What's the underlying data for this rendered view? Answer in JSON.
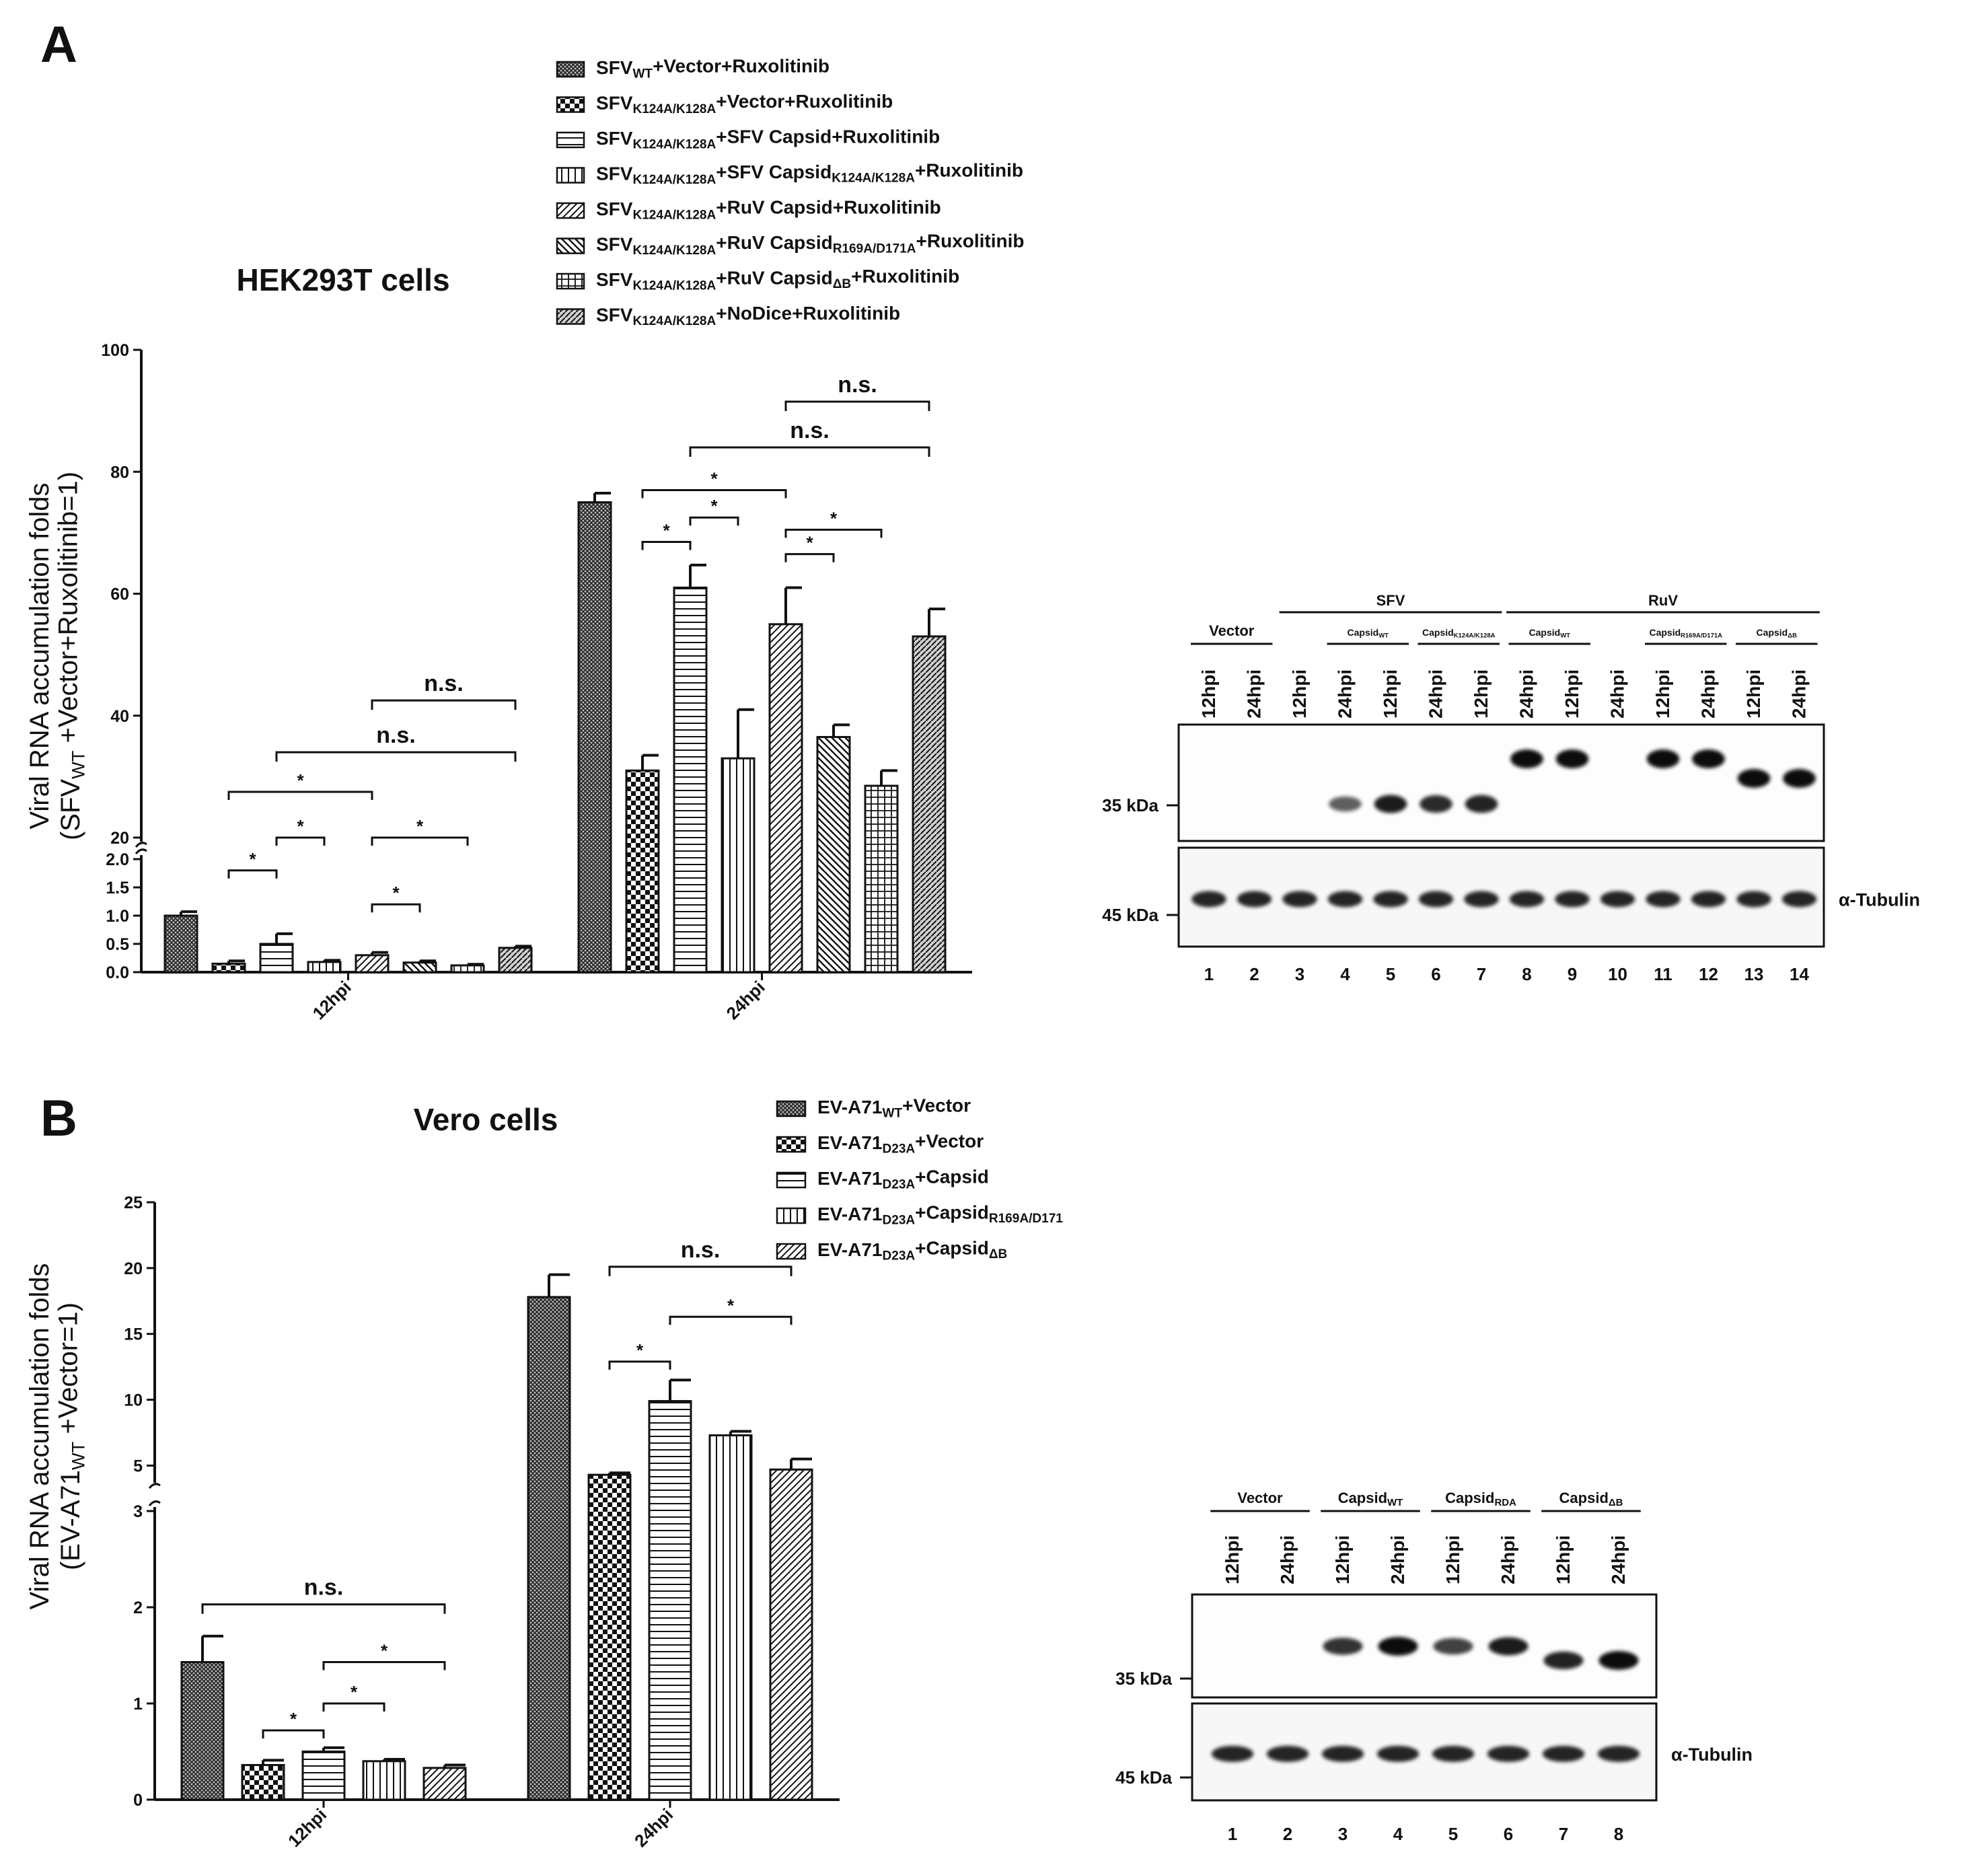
{
  "panels": {
    "A": "A",
    "B": "B"
  },
  "chart_data": [
    {
      "id": "A",
      "type": "bar",
      "title": "HEK293T cells",
      "ylabel": [
        "Viral RNA accumulation folds",
        "(SFV",
        "WT",
        " +Vector+Ruxolitinib=1)"
      ],
      "ylim": [
        0,
        100
      ],
      "axis_break": [
        2,
        20
      ],
      "yticks_low": [
        "0.0",
        "0.5",
        "1.0",
        "1.5",
        "2.0"
      ],
      "yticks_high": [
        "20",
        "40",
        "60",
        "80",
        "100"
      ],
      "categories": [
        "12hpi",
        "24hpi"
      ],
      "series": [
        {
          "name": "SFVWT+Vector+Ruxolitinib",
          "label": [
            "SFV",
            "WT",
            "+Vector+Ruxolitinib"
          ],
          "pattern": "dense",
          "values": [
            1.0,
            75.0
          ],
          "errors": [
            0.07,
            1.5
          ]
        },
        {
          "name": "SFVK124A/K128A+Vector+Ruxolitinib",
          "label": [
            "SFV",
            "K124A/K128A",
            "+Vector+Ruxolitinib"
          ],
          "pattern": "checker",
          "values": [
            0.15,
            31.0
          ],
          "errors": [
            0.05,
            2.5
          ]
        },
        {
          "name": "SFVK124A/K128A+SFV Capsid+Ruxolitinib",
          "label": [
            "SFV",
            "K124A/K128A",
            "+SFV Capsid+Ruxolitinib"
          ],
          "pattern": "hlines",
          "values": [
            0.5,
            61.0
          ],
          "errors": [
            0.18,
            3.7
          ]
        },
        {
          "name": "SFVK124A/K128A+SFV CapsidK124A/K128A+Ruxolitinib",
          "label": [
            "SFV",
            "K124A/K128A",
            "+SFV Capsid",
            "K124A/K128A",
            "+Ruxolitinib"
          ],
          "pattern": "vlines",
          "values": [
            0.18,
            33.0
          ],
          "errors": [
            0.03,
            8.0
          ]
        },
        {
          "name": "SFVK124A/K128A+RuV Capsid+Ruxolitinib",
          "label": [
            "SFV",
            "K124A/K128A",
            "+RuV Capsid+Ruxolitinib"
          ],
          "pattern": "diag",
          "values": [
            0.3,
            55.0
          ],
          "errors": [
            0.05,
            6.0
          ]
        },
        {
          "name": "SFVK124A/K128A+RuV CapsidR169A/D171A+Ruxolitinib",
          "label": [
            "SFV",
            "K124A/K128A",
            "+RuV Capsid",
            "R169A/D171A",
            "+Ruxolitinib"
          ],
          "pattern": "revdiag",
          "values": [
            0.17,
            36.5
          ],
          "errors": [
            0.03,
            2.0
          ]
        },
        {
          "name": "SFVK124A/K128A+RuV CapsidΔB+Ruxolitinib",
          "label": [
            "SFV",
            "K124A/K128A",
            "+RuV Capsid",
            "ΔB",
            "+Ruxolitinib"
          ],
          "pattern": "grid",
          "values": [
            0.12,
            28.5
          ],
          "errors": [
            0.02,
            2.5
          ]
        },
        {
          "name": "SFVK124A/K128A+NoDice+Ruxolitinib",
          "label": [
            "SFV",
            "K124A/K128A",
            "+NoDice+Ruxolitinib"
          ],
          "pattern": "crossdiag",
          "values": [
            0.43,
            53.0
          ],
          "errors": [
            0.03,
            4.5
          ]
        }
      ],
      "significance": [
        {
          "group": 0,
          "from": 1,
          "to": 2,
          "label": "*",
          "y": 1.8
        },
        {
          "group": 0,
          "from": 2,
          "to": 3,
          "label": "*",
          "y": 2.3
        },
        {
          "group": 0,
          "from": 1,
          "to": 4,
          "label": "*",
          "y": 27.5
        },
        {
          "group": 0,
          "from": 4,
          "to": 5,
          "label": "*",
          "y": 1.2
        },
        {
          "group": 0,
          "from": 4,
          "to": 6,
          "label": "*",
          "y": 2.15
        },
        {
          "group": 0,
          "from": 2,
          "to": 7,
          "label": "n.s.",
          "y": 34.0
        },
        {
          "group": 0,
          "from": 4,
          "to": 7,
          "label": "n.s.",
          "y": 42.5
        },
        {
          "group": 1,
          "from": 1,
          "to": 2,
          "label": "*",
          "y": 68.5
        },
        {
          "group": 1,
          "from": 2,
          "to": 3,
          "label": "*",
          "y": 72.5
        },
        {
          "group": 1,
          "from": 1,
          "to": 4,
          "label": "*",
          "y": 77.0
        },
        {
          "group": 1,
          "from": 4,
          "to": 5,
          "label": "*",
          "y": 66.5
        },
        {
          "group": 1,
          "from": 4,
          "to": 6,
          "label": "*",
          "y": 70.5
        },
        {
          "group": 1,
          "from": 2,
          "to": 7,
          "label": "n.s.",
          "y": 84.0
        },
        {
          "group": 1,
          "from": 4,
          "to": 7,
          "label": "n.s.",
          "y": 91.5
        }
      ]
    },
    {
      "id": "B",
      "type": "bar",
      "title": "Vero cells",
      "ylabel": [
        "Viral RNA accumulation folds",
        "(EV-A71",
        "WT",
        " +Vector=1)"
      ],
      "ylim": [
        0,
        25
      ],
      "axis_break": [
        3,
        4
      ],
      "yticks_low": [
        "0",
        "1",
        "2",
        "3"
      ],
      "yticks_high": [
        "5",
        "10",
        "15",
        "20",
        "25"
      ],
      "categories": [
        "12hpi",
        "24hpi"
      ],
      "series": [
        {
          "name": "EV-A71WT+Vector",
          "label": [
            "EV-A71",
            "WT",
            "+Vector"
          ],
          "pattern": "dense",
          "values": [
            1.43,
            17.8
          ],
          "errors": [
            0.27,
            1.7
          ]
        },
        {
          "name": "EV-A71D23A+Vector",
          "label": [
            "EV-A71",
            "D23A",
            "+Vector"
          ],
          "pattern": "checker",
          "values": [
            0.36,
            4.3
          ],
          "errors": [
            0.05,
            0.15
          ]
        },
        {
          "name": "EV-A71D23A+Capsid",
          "label": [
            "EV-A71",
            "D23A",
            "+Capsid"
          ],
          "pattern": "hlines",
          "values": [
            0.5,
            9.9
          ],
          "errors": [
            0.04,
            1.6
          ]
        },
        {
          "name": "EV-A71D23A+CapsidR169A/D171",
          "label": [
            "EV-A71",
            "D23A",
            "+Capsid",
            "R169A/D171"
          ],
          "pattern": "vlines",
          "values": [
            0.4,
            7.3
          ],
          "errors": [
            0.02,
            0.3
          ]
        },
        {
          "name": "EV-A71D23A+CapsidΔB",
          "label": [
            "EV-A71",
            "D23A",
            "+Capsid",
            "ΔB"
          ],
          "pattern": "diag",
          "values": [
            0.33,
            4.7
          ],
          "errors": [
            0.03,
            0.8
          ]
        }
      ],
      "significance": [
        {
          "group": 0,
          "from": 1,
          "to": 2,
          "label": "*",
          "y": 0.72
        },
        {
          "group": 0,
          "from": 2,
          "to": 3,
          "label": "*",
          "y": 1.0
        },
        {
          "group": 0,
          "from": 2,
          "to": 4,
          "label": "*",
          "y": 1.43
        },
        {
          "group": 0,
          "from": 0,
          "to": 4,
          "label": "n.s.",
          "y": 2.03
        },
        {
          "group": 1,
          "from": 1,
          "to": 2,
          "label": "*",
          "y": 12.9
        },
        {
          "group": 1,
          "from": 2,
          "to": 4,
          "label": "*",
          "y": 16.3
        },
        {
          "group": 1,
          "from": 1,
          "to": 4,
          "label": "n.s.",
          "y": 20.1
        }
      ]
    }
  ],
  "blots": [
    {
      "id": "A-blot",
      "top_groups": [
        {
          "label": "SFV",
          "from_lane": 3,
          "to_lane": 7
        },
        {
          "label": "RuV",
          "from_lane": 8,
          "to_lane": 14
        }
      ],
      "sub_groups": [
        {
          "label": [
            "Vector"
          ],
          "from_lane": 1,
          "to_lane": 2,
          "small": false
        },
        {
          "label": [
            "Capsid",
            "WT"
          ],
          "from_lane": 4,
          "to_lane": 5,
          "small": true
        },
        {
          "label": [
            "Capsid",
            "K124A/K128A"
          ],
          "from_lane": 6,
          "to_lane": 7,
          "small": true
        },
        {
          "label": [
            "Capsid",
            "WT"
          ],
          "from_lane": 8,
          "to_lane": 9,
          "small": true
        },
        {
          "label": [
            "Capsid",
            "R169A/D171A"
          ],
          "from_lane": 11,
          "to_lane": 12,
          "small": true
        },
        {
          "label": [
            "Capsid",
            "ΔB"
          ],
          "from_lane": 13,
          "to_lane": 14,
          "small": true
        }
      ],
      "lane_labels": [
        "12hpi",
        "24hpi",
        "12hpi",
        "24hpi",
        "12hpi",
        "24hpi",
        "12hpi",
        "24hpi",
        "12hpi",
        "24hpi",
        "12hpi",
        "24hpi",
        "12hpi",
        "24hpi"
      ],
      "lane_numbers": [
        "1",
        "2",
        "3",
        "4",
        "5",
        "6",
        "7",
        "8",
        "9",
        "10",
        "11",
        "12",
        "13",
        "14"
      ],
      "mw_top": "35 kDa",
      "mw_bottom": "45 kDa",
      "loading_label": "α-Tubulin",
      "capsid_band_intensity": [
        0,
        0,
        0,
        0.45,
        0.9,
        0.8,
        0.85,
        1,
        1,
        0,
        1,
        1,
        1,
        1
      ],
      "capsid_band_level": [
        "",
        "",
        "",
        "low",
        "low",
        "low",
        "low",
        "high",
        "high",
        "",
        "high",
        "high",
        "mid",
        "mid"
      ]
    },
    {
      "id": "B-blot",
      "top_groups": [],
      "sub_groups": [
        {
          "label": [
            "Vector"
          ],
          "from_lane": 1,
          "to_lane": 2,
          "small": false
        },
        {
          "label": [
            "Capsid",
            "WT"
          ],
          "from_lane": 3,
          "to_lane": 4,
          "small": false
        },
        {
          "label": [
            "Capsid",
            "RDA"
          ],
          "from_lane": 5,
          "to_lane": 6,
          "small": false
        },
        {
          "label": [
            "Capsid",
            "ΔB"
          ],
          "from_lane": 7,
          "to_lane": 8,
          "small": false
        }
      ],
      "lane_labels": [
        "12hpi",
        "24hpi",
        "12hpi",
        "24hpi",
        "12hpi",
        "24hpi",
        "12hpi",
        "24hpi"
      ],
      "lane_numbers": [
        "1",
        "2",
        "3",
        "4",
        "5",
        "6",
        "7",
        "8"
      ],
      "mw_top": "35 kDa",
      "mw_bottom": "45 kDa",
      "loading_label": "α-Tubulin",
      "capsid_band_intensity": [
        0,
        0,
        0.75,
        1,
        0.65,
        0.9,
        0.85,
        1
      ],
      "capsid_band_level": [
        "",
        "",
        "high",
        "high",
        "high",
        "high",
        "mid",
        "mid"
      ]
    }
  ]
}
